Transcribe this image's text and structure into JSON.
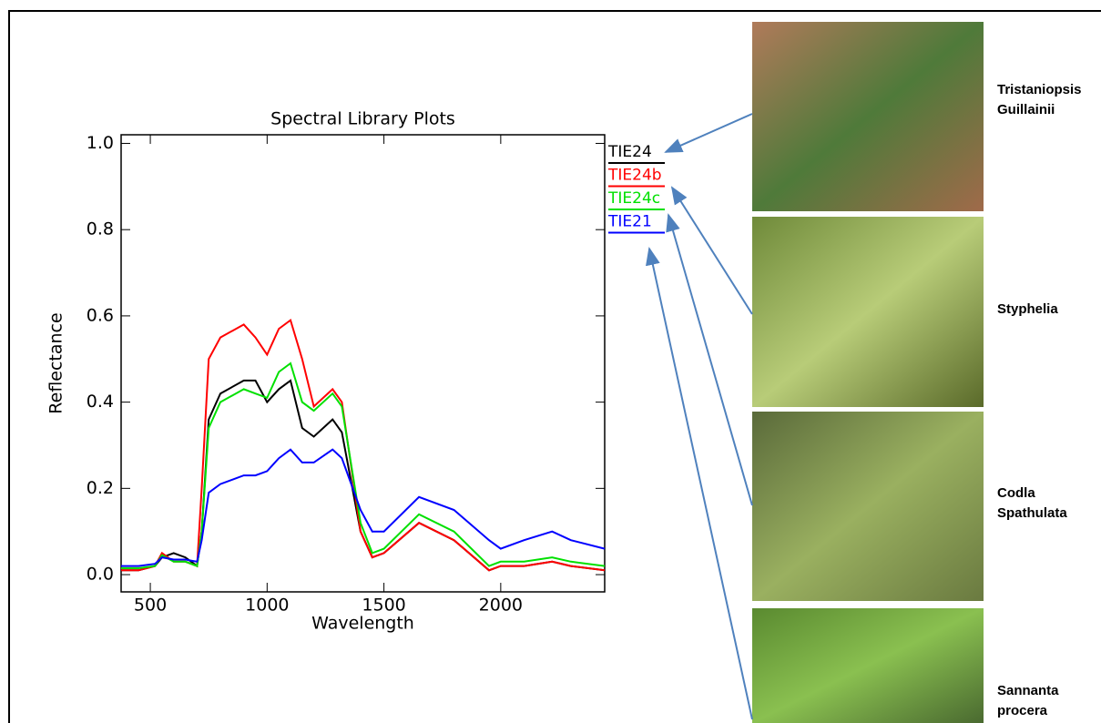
{
  "chart_data": {
    "type": "line",
    "title": "Spectral Library Plots",
    "x_label": "Wavelength",
    "y_label": "Reflectance",
    "x": [
      375,
      450,
      520,
      550,
      600,
      650,
      700,
      720,
      750,
      800,
      900,
      950,
      1000,
      1050,
      1100,
      1150,
      1200,
      1280,
      1320,
      1400,
      1450,
      1500,
      1650,
      1800,
      1950,
      2000,
      2100,
      2220,
      2300,
      2445
    ],
    "series": [
      {
        "name": "TIE24",
        "color": "#000000",
        "values": [
          0.01,
          0.01,
          0.02,
          0.04,
          0.05,
          0.04,
          0.02,
          0.1,
          0.36,
          0.42,
          0.45,
          0.45,
          0.4,
          0.43,
          0.45,
          0.34,
          0.32,
          0.36,
          0.33,
          0.1,
          0.04,
          0.05,
          0.12,
          0.08,
          0.01,
          0.02,
          0.02,
          0.03,
          0.02,
          0.01
        ]
      },
      {
        "name": "TIE24b",
        "color": "#ff0000",
        "values": [
          0.01,
          0.01,
          0.02,
          0.05,
          0.03,
          0.03,
          0.02,
          0.2,
          0.5,
          0.55,
          0.58,
          0.55,
          0.51,
          0.57,
          0.59,
          0.5,
          0.39,
          0.43,
          0.4,
          0.1,
          0.04,
          0.05,
          0.12,
          0.08,
          0.01,
          0.02,
          0.02,
          0.03,
          0.02,
          0.01
        ]
      },
      {
        "name": "TIE24c",
        "color": "#00e000",
        "values": [
          0.015,
          0.015,
          0.02,
          0.045,
          0.03,
          0.03,
          0.02,
          0.1,
          0.34,
          0.4,
          0.43,
          0.42,
          0.41,
          0.47,
          0.49,
          0.4,
          0.38,
          0.42,
          0.39,
          0.12,
          0.05,
          0.06,
          0.14,
          0.1,
          0.02,
          0.03,
          0.03,
          0.04,
          0.03,
          0.02
        ]
      },
      {
        "name": "TIE21",
        "color": "#0000ff",
        "values": [
          0.02,
          0.02,
          0.025,
          0.04,
          0.035,
          0.035,
          0.03,
          0.08,
          0.19,
          0.21,
          0.23,
          0.23,
          0.24,
          0.27,
          0.29,
          0.26,
          0.26,
          0.29,
          0.27,
          0.15,
          0.1,
          0.1,
          0.18,
          0.15,
          0.08,
          0.06,
          0.08,
          0.1,
          0.08,
          0.06
        ]
      }
    ],
    "xlim": [
      375,
      2445
    ],
    "ylim": [
      -0.04,
      1.02
    ],
    "xticks": [
      500,
      1000,
      1500,
      2000
    ],
    "yticks": [
      {
        "value": 0,
        "label": "0.0"
      },
      {
        "value": 0.2,
        "label": "0.2"
      },
      {
        "value": 0.4,
        "label": "0.4"
      },
      {
        "value": 0.6,
        "label": "0.6"
      },
      {
        "value": 0.8,
        "label": "0.8"
      },
      {
        "value": 1,
        "label": "1.0"
      }
    ]
  },
  "photos": [
    {
      "label": [
        "Tristaniopsis",
        "Guillainii"
      ]
    },
    {
      "label": [
        "Styphelia"
      ]
    },
    {
      "label": [
        "Codla",
        "Spathulata"
      ]
    },
    {
      "label": [
        "Sannanta",
        "procera"
      ]
    }
  ]
}
